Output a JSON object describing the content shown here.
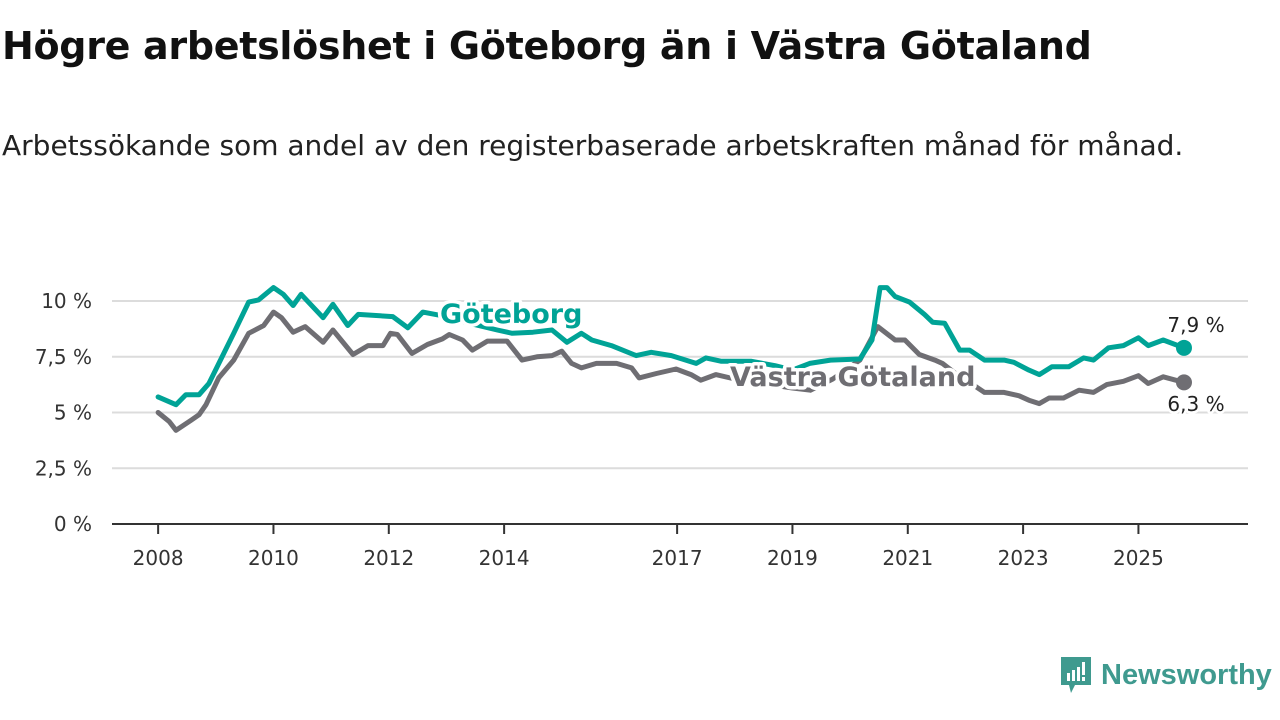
{
  "title": "Högre arbetslöshet i Göteborg än i Västra Götaland",
  "subtitle": "Arbetssökande som andel av den registerbaserade arbetskraften månad för månad.",
  "brand": "Newsworthy",
  "colors": {
    "goteborg": "#00a396",
    "vastra": "#6f6e73",
    "grid": "#dcdcdc",
    "axis": "#333333",
    "brand": "#3f9a8f"
  },
  "chart_data": {
    "type": "line",
    "title": "Högre arbetslöshet i Göteborg än i Västra Götaland",
    "xlabel": "",
    "ylabel": "",
    "xlim": [
      2007.2,
      2026.9
    ],
    "ylim": [
      0,
      10
    ],
    "grid": true,
    "x_ticks": [
      2008,
      2010,
      2012,
      2014,
      2017,
      2019,
      2021,
      2023,
      2025
    ],
    "x_tick_labels": [
      "2008",
      "2010",
      "2012",
      "2014",
      "2017",
      "2019",
      "2021",
      "2023",
      "2025"
    ],
    "y_ticks": [
      0,
      2.5,
      5,
      7.5,
      10
    ],
    "y_tick_labels": [
      "0 %",
      "2,5 %",
      "5 %",
      "7,5 %",
      "10 %"
    ],
    "series": [
      {
        "name": "Västra Götaland",
        "color": "#6f6e73",
        "end_label": "6,3 %",
        "x": [
          2008.0,
          2008.19,
          2008.31,
          2008.57,
          2008.71,
          2008.83,
          2009.05,
          2009.31,
          2009.57,
          2009.83,
          2010.0,
          2010.14,
          2010.34,
          2010.55,
          2010.86,
          2011.03,
          2011.38,
          2011.64,
          2011.9,
          2012.03,
          2012.15,
          2012.4,
          2012.67,
          2012.93,
          2013.05,
          2013.28,
          2013.45,
          2013.71,
          2014.05,
          2014.31,
          2014.57,
          2014.83,
          2015.0,
          2015.17,
          2015.34,
          2015.6,
          2015.95,
          2016.21,
          2016.34,
          2016.64,
          2016.98,
          2017.24,
          2017.41,
          2017.67,
          2018.0,
          2018.5,
          2019.0,
          2019.31,
          2019.7,
          2020.17,
          2020.48,
          2020.78,
          2020.95,
          2021.2,
          2021.47,
          2021.6,
          2021.95,
          2022.07,
          2022.33,
          2022.67,
          2022.93,
          2023.1,
          2023.28,
          2023.45,
          2023.7,
          2023.97,
          2024.22,
          2024.45,
          2024.74,
          2025.0,
          2025.17,
          2025.43,
          2025.79
        ],
        "y": [
          5.0,
          4.6,
          4.2,
          4.65,
          4.9,
          5.35,
          6.55,
          7.35,
          8.55,
          8.9,
          9.5,
          9.25,
          8.6,
          8.85,
          8.15,
          8.7,
          7.6,
          8.0,
          8.0,
          8.55,
          8.5,
          7.65,
          8.05,
          8.3,
          8.5,
          8.25,
          7.8,
          8.2,
          8.2,
          7.35,
          7.5,
          7.55,
          7.75,
          7.2,
          7.0,
          7.2,
          7.2,
          7.0,
          6.55,
          6.75,
          6.95,
          6.7,
          6.45,
          6.7,
          6.5,
          6.3,
          6.1,
          6.0,
          6.5,
          7.35,
          8.85,
          8.25,
          8.25,
          7.6,
          7.35,
          7.2,
          6.5,
          6.35,
          5.9,
          5.9,
          5.75,
          5.55,
          5.4,
          5.65,
          5.65,
          6.0,
          5.9,
          6.25,
          6.4,
          6.65,
          6.3,
          6.6,
          6.35
        ]
      },
      {
        "name": "Göteborg",
        "color": "#00a396",
        "end_label": "7,9 %",
        "x": [
          2008.0,
          2008.31,
          2008.48,
          2008.71,
          2008.88,
          2009.31,
          2009.57,
          2009.74,
          2010.0,
          2010.17,
          2010.34,
          2010.48,
          2010.86,
          2011.03,
          2011.29,
          2011.47,
          2012.07,
          2012.33,
          2012.59,
          2013.0,
          2013.4,
          2013.88,
          2014.14,
          2014.5,
          2014.83,
          2015.09,
          2015.34,
          2015.52,
          2015.86,
          2016.29,
          2016.55,
          2016.9,
          2017.33,
          2017.5,
          2017.76,
          2018.28,
          2018.7,
          2019.0,
          2019.3,
          2019.66,
          2020.17,
          2020.38,
          2020.52,
          2020.64,
          2020.78,
          2021.03,
          2021.29,
          2021.43,
          2021.64,
          2021.9,
          2022.07,
          2022.33,
          2022.67,
          2022.84,
          2023.1,
          2023.28,
          2023.5,
          2023.79,
          2024.05,
          2024.22,
          2024.48,
          2024.74,
          2025.0,
          2025.17,
          2025.43,
          2025.79
        ],
        "y": [
          5.7,
          5.35,
          5.8,
          5.8,
          6.3,
          8.55,
          9.95,
          10.05,
          10.6,
          10.3,
          9.8,
          10.3,
          9.25,
          9.85,
          8.9,
          9.4,
          9.3,
          8.8,
          9.5,
          9.3,
          9.0,
          8.7,
          8.55,
          8.6,
          8.7,
          8.15,
          8.55,
          8.25,
          8.0,
          7.55,
          7.7,
          7.55,
          7.2,
          7.45,
          7.3,
          7.3,
          7.1,
          6.9,
          7.2,
          7.35,
          7.4,
          8.25,
          10.6,
          10.6,
          10.2,
          9.95,
          9.4,
          9.05,
          9.0,
          7.8,
          7.8,
          7.35,
          7.35,
          7.25,
          6.9,
          6.7,
          7.05,
          7.05,
          7.45,
          7.35,
          7.9,
          8.0,
          8.35,
          8.0,
          8.25,
          7.9
        ]
      }
    ]
  }
}
